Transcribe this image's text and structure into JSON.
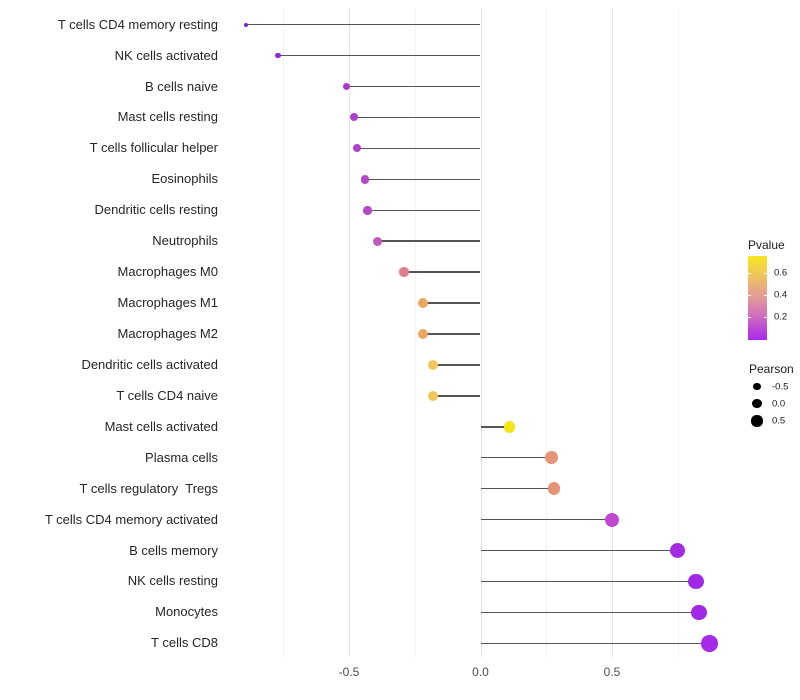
{
  "chart_data": {
    "type": "lollipop",
    "title": "",
    "xlabel": "",
    "ylabel": "",
    "xlim": [
      -1.0,
      1.05
    ],
    "x_ticks": [
      {
        "value": -0.5,
        "label": "-0.5"
      },
      {
        "value": 0.0,
        "label": "0.0"
      },
      {
        "value": 0.5,
        "label": "0.5"
      }
    ],
    "gridlines_major": [
      -0.5,
      0.0,
      0.5
    ],
    "gridlines_minor": [
      -0.75,
      -0.25,
      0.25,
      0.75
    ],
    "grid_on": true,
    "stem_color": "#555555",
    "points": [
      {
        "label": "T cells CD4 memory resting",
        "pearson": -0.89,
        "pvalue": 0.04,
        "color": "#7e20d8",
        "diameter": 4
      },
      {
        "label": "NK cells activated",
        "pearson": -0.77,
        "pvalue": 0.05,
        "color": "#8c26dc",
        "diameter": 5.5
      },
      {
        "label": "B cells naive",
        "pearson": -0.51,
        "pvalue": 0.12,
        "color": "#a83bcb",
        "diameter": 7.5
      },
      {
        "label": "Mast cells resting",
        "pearson": -0.48,
        "pvalue": 0.13,
        "color": "#ad41c8",
        "diameter": 8
      },
      {
        "label": "T cells follicular helper",
        "pearson": -0.47,
        "pvalue": 0.13,
        "color": "#ad41c8",
        "diameter": 8
      },
      {
        "label": "Eosinophils",
        "pearson": -0.44,
        "pvalue": 0.15,
        "color": "#b347c6",
        "diameter": 8.5
      },
      {
        "label": "Dendritic cells resting",
        "pearson": -0.43,
        "pvalue": 0.15,
        "color": "#b448c5",
        "diameter": 8.5
      },
      {
        "label": "Neutrophils",
        "pearson": -0.39,
        "pvalue": 0.2,
        "color": "#c258bb",
        "diameter": 9
      },
      {
        "label": "Macrophages M0",
        "pearson": -0.29,
        "pvalue": 0.38,
        "color": "#dc7e8b",
        "diameter": 9.5
      },
      {
        "label": "Macrophages M1",
        "pearson": -0.22,
        "pvalue": 0.48,
        "color": "#eaa961",
        "diameter": 10
      },
      {
        "label": "Macrophages M2",
        "pearson": -0.22,
        "pvalue": 0.48,
        "color": "#eaa75f",
        "diameter": 10
      },
      {
        "label": "Dendritic cells activated",
        "pearson": -0.18,
        "pvalue": 0.55,
        "color": "#f0c75a",
        "diameter": 10.5
      },
      {
        "label": "T cells CD4 naive",
        "pearson": -0.18,
        "pvalue": 0.55,
        "color": "#f0c75a",
        "diameter": 10.5
      },
      {
        "label": "Mast cells activated",
        "pearson": 0.11,
        "pvalue": 0.68,
        "color": "#f5e516",
        "diameter": 11.5
      },
      {
        "label": "Plasma cells",
        "pearson": 0.27,
        "pvalue": 0.42,
        "color": "#e69478",
        "diameter": 12.5
      },
      {
        "label": "T cells regulatory  Tregs",
        "pearson": 0.28,
        "pvalue": 0.42,
        "color": "#e69276",
        "diameter": 12.5
      },
      {
        "label": "T cells CD4 memory activated",
        "pearson": 0.5,
        "pvalue": 0.12,
        "color": "#c148d0",
        "diameter": 14
      },
      {
        "label": "B cells memory",
        "pearson": 0.75,
        "pvalue": 0.05,
        "color": "#a42be0",
        "diameter": 15
      },
      {
        "label": "NK cells resting",
        "pearson": 0.82,
        "pvalue": 0.03,
        "color": "#a129e6",
        "diameter": 15.5
      },
      {
        "label": "Monocytes",
        "pearson": 0.83,
        "pvalue": 0.03,
        "color": "#a129e6",
        "diameter": 15.5
      },
      {
        "label": "T cells CD8",
        "pearson": 0.87,
        "pvalue": 0.02,
        "color": "#a52be8",
        "diameter": 16.5
      }
    ],
    "legend_pvalue": {
      "title": "Pvalue",
      "range": [
        0.0,
        0.75
      ],
      "ticks": [
        {
          "label": "0.6",
          "value": 0.6
        },
        {
          "label": "0.4",
          "value": 0.4
        },
        {
          "label": "0.2",
          "value": 0.2
        }
      ],
      "gradient_top_to_bottom": [
        "#f9e620",
        "#eec162",
        "#e2999a",
        "#cb66c4",
        "#aa26ec"
      ]
    },
    "legend_pearson": {
      "title": "Pearson",
      "items": [
        {
          "label": "-0.5",
          "diameter": 7.3
        },
        {
          "label": "0.0",
          "diameter": 9.3
        },
        {
          "label": "0.5",
          "diameter": 11.3
        }
      ],
      "dot_color": "#000000"
    }
  }
}
